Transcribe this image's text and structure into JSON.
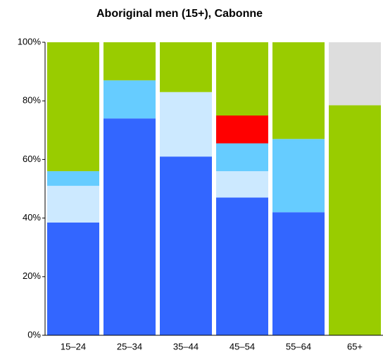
{
  "chart_data": {
    "type": "stacked_bar",
    "title": "Aboriginal men (15+), Cabonne",
    "categories": [
      "15–24",
      "25–34",
      "35–44",
      "45–54",
      "55–64",
      "65+"
    ],
    "series": [
      {
        "color": "#3366ff",
        "values": [
          38.5,
          74,
          61,
          47,
          42,
          0
        ]
      },
      {
        "color": "#cce9ff",
        "values": [
          12.5,
          0,
          22,
          9,
          0,
          0
        ]
      },
      {
        "color": "#66ccff",
        "values": [
          5,
          13,
          0,
          9.5,
          25,
          0
        ]
      },
      {
        "color": "#ff0000",
        "values": [
          0,
          0,
          0,
          9.5,
          0,
          0
        ]
      },
      {
        "color": "#99cc00",
        "values": [
          44,
          13,
          17,
          25,
          33,
          78.5
        ]
      },
      {
        "color": "#dddddd",
        "values": [
          0,
          0,
          0,
          0,
          0,
          21.5
        ]
      }
    ],
    "ylim": [
      0,
      100
    ],
    "yticks": [
      {
        "value": 0,
        "label": "0%"
      },
      {
        "value": 20,
        "label": "20%"
      },
      {
        "value": 40,
        "label": "40%"
      },
      {
        "value": 60,
        "label": "60%"
      },
      {
        "value": 80,
        "label": "80%"
      },
      {
        "value": 100,
        "label": "100%"
      }
    ]
  }
}
